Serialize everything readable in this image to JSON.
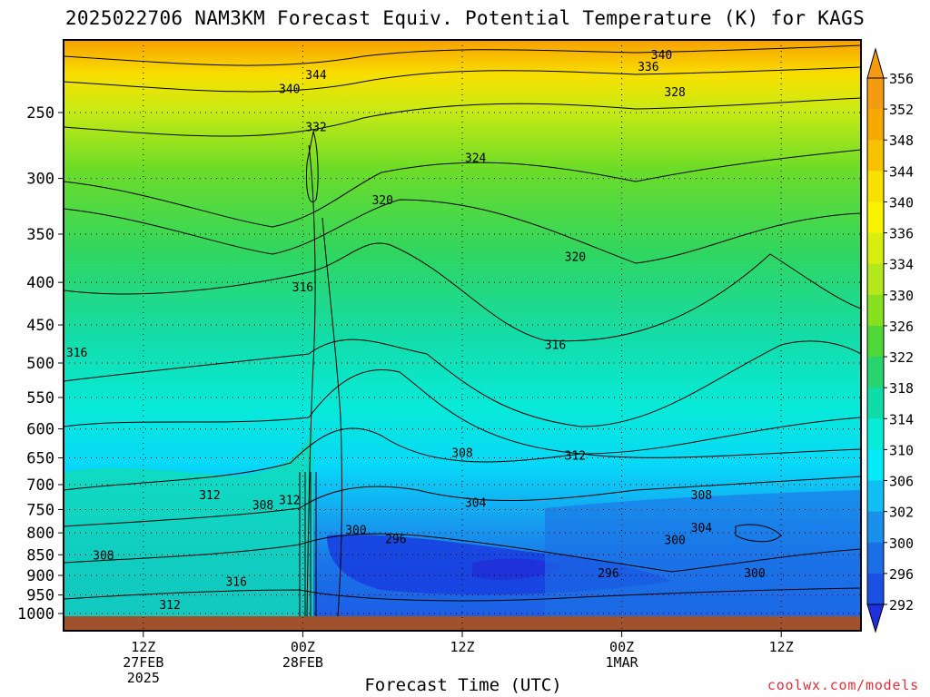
{
  "chart_data": {
    "type": "heatmap",
    "title": "2025022706 NAM3KM Forecast Equiv. Potential Temperature (K) for KAGS",
    "xlabel": "Forecast Time (UTC)",
    "ylabel": "",
    "y_axis": {
      "scale": "log-pressure (inverted)",
      "ticks": [
        250,
        300,
        350,
        400,
        450,
        500,
        550,
        600,
        650,
        700,
        750,
        800,
        850,
        900,
        950,
        1000
      ],
      "range": [
        1010,
        205
      ]
    },
    "x_axis": {
      "range_hours": [
        0,
        60
      ],
      "ticks": [
        {
          "hour": 6,
          "lines": [
            "12Z",
            "27FEB",
            "2025"
          ]
        },
        {
          "hour": 18,
          "lines": [
            "00Z",
            "28FEB"
          ]
        },
        {
          "hour": 30,
          "lines": [
            "12Z"
          ]
        },
        {
          "hour": 42,
          "lines": [
            "00Z",
            "1MAR"
          ]
        },
        {
          "hour": 54,
          "lines": [
            "12Z"
          ]
        }
      ]
    },
    "colorbar": {
      "labels": [
        356,
        352,
        348,
        344,
        340,
        336,
        334,
        330,
        326,
        322,
        318,
        314,
        310,
        306,
        302,
        300,
        296,
        292
      ],
      "colors": [
        "#f39c12",
        "#f5a800",
        "#f7c300",
        "#f8e000",
        "#f8f400",
        "#d8ee10",
        "#b2e81c",
        "#86e020",
        "#50d838",
        "#28d470",
        "#10dca8",
        "#08ecd8",
        "#04eaf8",
        "#10bef5",
        "#1a90ec",
        "#1c6ee4",
        "#1c50e4",
        "#2030dc"
      ]
    },
    "contour_labels": [
      {
        "text": "340",
        "hour": 45,
        "p": 213
      },
      {
        "text": "336",
        "hour": 44,
        "p": 220
      },
      {
        "text": "344",
        "hour": 19,
        "p": 225
      },
      {
        "text": "340",
        "hour": 17,
        "p": 234
      },
      {
        "text": "328",
        "hour": 46,
        "p": 236
      },
      {
        "text": "332",
        "hour": 19,
        "p": 260
      },
      {
        "text": "324",
        "hour": 31,
        "p": 283
      },
      {
        "text": "320",
        "hour": 24,
        "p": 318
      },
      {
        "text": "320",
        "hour": 38.5,
        "p": 372
      },
      {
        "text": "316",
        "hour": 18,
        "p": 405
      },
      {
        "text": "316",
        "hour": 37,
        "p": 475
      },
      {
        "text": "316",
        "hour": 1,
        "p": 485
      },
      {
        "text": "308",
        "hour": 30,
        "p": 640
      },
      {
        "text": "312",
        "hour": 38.5,
        "p": 645
      },
      {
        "text": "312",
        "hour": 11,
        "p": 720
      },
      {
        "text": "308",
        "hour": 48,
        "p": 720
      },
      {
        "text": "312",
        "hour": 17,
        "p": 730
      },
      {
        "text": "304",
        "hour": 31,
        "p": 735
      },
      {
        "text": "308",
        "hour": 15,
        "p": 740
      },
      {
        "text": "300",
        "hour": 22,
        "p": 793
      },
      {
        "text": "304",
        "hour": 48,
        "p": 788
      },
      {
        "text": "296",
        "hour": 25,
        "p": 813
      },
      {
        "text": "300",
        "hour": 46,
        "p": 815
      },
      {
        "text": "308",
        "hour": 3,
        "p": 850
      },
      {
        "text": "296",
        "hour": 41,
        "p": 893
      },
      {
        "text": "300",
        "hour": 52,
        "p": 893
      },
      {
        "text": "316",
        "hour": 13,
        "p": 915
      },
      {
        "text": "312",
        "hour": 8,
        "p": 975
      }
    ]
  },
  "watermark": "coolwx.com/models"
}
